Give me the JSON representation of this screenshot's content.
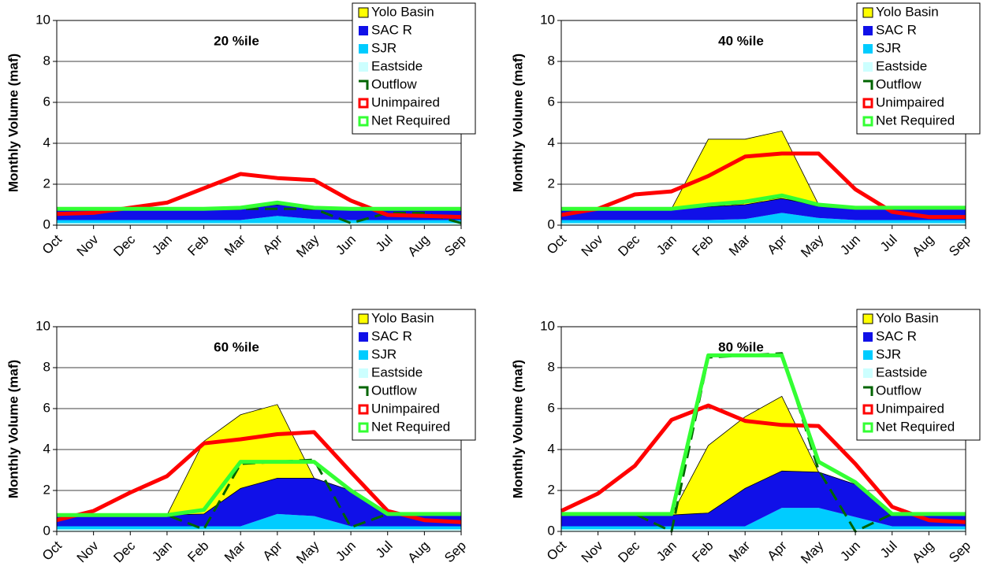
{
  "chart_data": [
    {
      "type": "area",
      "title": "20 %ile",
      "y_label": "Monthly Volume (maf)",
      "categories": [
        "Oct",
        "Nov",
        "Dec",
        "Jan",
        "Feb",
        "Mar",
        "Apr",
        "May",
        "Jun",
        "Jul",
        "Aug",
        "Sep"
      ],
      "ylim": [
        0,
        10
      ],
      "yticks": [
        0,
        2,
        4,
        6,
        8,
        10
      ],
      "grid": true,
      "legend": "top-right",
      "series": [
        {
          "name": "Yolo Basin",
          "kind": "area",
          "color": "#ffff00",
          "values": [
            0,
            0,
            0,
            0,
            0,
            0,
            0,
            0,
            0,
            0,
            0,
            0
          ]
        },
        {
          "name": "SAC R",
          "kind": "area",
          "color": "#1010e8",
          "values": [
            0.55,
            0.55,
            0.55,
            0.55,
            0.55,
            0.55,
            0.55,
            0.55,
            0.55,
            0.55,
            0.55,
            0.55
          ]
        },
        {
          "name": "SJR",
          "kind": "area",
          "color": "#00ccff",
          "values": [
            0.15,
            0.15,
            0.15,
            0.15,
            0.15,
            0.15,
            0.35,
            0.2,
            0.15,
            0.15,
            0.15,
            0.15
          ]
        },
        {
          "name": "Eastside",
          "kind": "area",
          "color": "#ccffff",
          "values": [
            0.1,
            0.1,
            0.1,
            0.1,
            0.1,
            0.1,
            0.1,
            0.1,
            0.1,
            0.1,
            0.1,
            0.1
          ]
        },
        {
          "name": "Outflow",
          "kind": "line",
          "dashed": true,
          "color": "#006400",
          "values": [
            0.8,
            0.8,
            0.8,
            0.8,
            0.8,
            0.8,
            0.8,
            0.8,
            0.1,
            0.6,
            0.6,
            0.1
          ]
        },
        {
          "name": "Unimpaired",
          "kind": "line",
          "color": "#ff0000",
          "values": [
            0.55,
            0.6,
            0.85,
            1.1,
            1.8,
            2.5,
            2.3,
            2.2,
            1.2,
            0.5,
            0.45,
            0.4
          ]
        },
        {
          "name": "Net Required",
          "kind": "line",
          "color": "#33ff33",
          "values": [
            0.8,
            0.8,
            0.8,
            0.8,
            0.8,
            0.85,
            1.1,
            0.85,
            0.8,
            0.8,
            0.8,
            0.8
          ]
        }
      ]
    },
    {
      "type": "area",
      "title": "40 %ile",
      "y_label": "Monthly Volume (maf)",
      "categories": [
        "Oct",
        "Nov",
        "Dec",
        "Jan",
        "Feb",
        "Mar",
        "Apr",
        "May",
        "Jun",
        "Jul",
        "Aug",
        "Sep"
      ],
      "ylim": [
        0,
        10
      ],
      "yticks": [
        0,
        2,
        4,
        6,
        8,
        10
      ],
      "grid": true,
      "legend": "top-right",
      "series": [
        {
          "name": "Yolo Basin",
          "kind": "area",
          "color": "#ffff00",
          "values": [
            0,
            0,
            0,
            0,
            3.3,
            3.2,
            3.3,
            0.05,
            0,
            0,
            0,
            0
          ]
        },
        {
          "name": "SAC R",
          "kind": "area",
          "color": "#1010e8",
          "values": [
            0.55,
            0.55,
            0.55,
            0.55,
            0.65,
            0.7,
            0.7,
            0.6,
            0.55,
            0.55,
            0.55,
            0.55
          ]
        },
        {
          "name": "SJR",
          "kind": "area",
          "color": "#00ccff",
          "values": [
            0.15,
            0.15,
            0.15,
            0.15,
            0.15,
            0.2,
            0.5,
            0.25,
            0.15,
            0.15,
            0.15,
            0.15
          ]
        },
        {
          "name": "Eastside",
          "kind": "area",
          "color": "#ccffff",
          "values": [
            0.1,
            0.1,
            0.1,
            0.1,
            0.1,
            0.1,
            0.1,
            0.1,
            0.1,
            0.1,
            0.1,
            0.1
          ]
        },
        {
          "name": "Outflow",
          "kind": "line",
          "dashed": true,
          "color": "#006400",
          "values": [
            0.8,
            0.8,
            0.8,
            0.8,
            0.95,
            1.1,
            1.4,
            0.95,
            0.85,
            0.85,
            0.85,
            0.85
          ]
        },
        {
          "name": "Unimpaired",
          "kind": "line",
          "color": "#ff0000",
          "values": [
            0.5,
            0.8,
            1.5,
            1.65,
            2.4,
            3.35,
            3.5,
            3.5,
            1.75,
            0.65,
            0.4,
            0.4
          ]
        },
        {
          "name": "Net Required",
          "kind": "line",
          "color": "#33ff33",
          "values": [
            0.8,
            0.8,
            0.8,
            0.8,
            1.0,
            1.15,
            1.45,
            1.0,
            0.85,
            0.85,
            0.85,
            0.85
          ]
        }
      ]
    },
    {
      "type": "area",
      "title": "60 %ile",
      "y_label": "Monthly Volume (maf)",
      "categories": [
        "Oct",
        "Nov",
        "Dec",
        "Jan",
        "Feb",
        "Mar",
        "Apr",
        "May",
        "Jun",
        "Jul",
        "Aug",
        "Sep"
      ],
      "ylim": [
        0,
        10
      ],
      "yticks": [
        0,
        2,
        4,
        6,
        8,
        10
      ],
      "grid": true,
      "legend": "top-right",
      "series": [
        {
          "name": "Yolo Basin",
          "kind": "area",
          "color": "#ffff00",
          "values": [
            0,
            0,
            0,
            0,
            3.55,
            3.6,
            3.6,
            0,
            0,
            0,
            0,
            0
          ]
        },
        {
          "name": "SAC R",
          "kind": "area",
          "color": "#1010e8",
          "values": [
            0.55,
            0.55,
            0.55,
            0.55,
            0.6,
            1.85,
            1.75,
            1.85,
            1.75,
            0.55,
            0.55,
            0.55
          ]
        },
        {
          "name": "SJR",
          "kind": "area",
          "color": "#00ccff",
          "values": [
            0.15,
            0.15,
            0.15,
            0.15,
            0.15,
            0.15,
            0.75,
            0.65,
            0.15,
            0.15,
            0.15,
            0.15
          ]
        },
        {
          "name": "Eastside",
          "kind": "area",
          "color": "#ccffff",
          "values": [
            0.1,
            0.1,
            0.1,
            0.1,
            0.1,
            0.1,
            0.1,
            0.1,
            0.1,
            0.1,
            0.1,
            0.1
          ]
        },
        {
          "name": "Outflow",
          "kind": "line",
          "dashed": true,
          "color": "#006400",
          "values": [
            0.8,
            0.8,
            0.8,
            0.8,
            0.1,
            3.3,
            3.4,
            3.5,
            0.2,
            0.85,
            0.85,
            0.85
          ]
        },
        {
          "name": "Unimpaired",
          "kind": "line",
          "color": "#ff0000",
          "values": [
            0.55,
            1.0,
            1.9,
            2.7,
            4.3,
            4.5,
            4.75,
            4.85,
            2.9,
            1.0,
            0.55,
            0.45
          ]
        },
        {
          "name": "Net Required",
          "kind": "line",
          "color": "#33ff33",
          "values": [
            0.8,
            0.8,
            0.8,
            0.8,
            1.05,
            3.4,
            3.4,
            3.4,
            2.0,
            0.85,
            0.85,
            0.85
          ]
        }
      ]
    },
    {
      "type": "area",
      "title": "80 %ile",
      "y_label": "Monthly Volume (maf)",
      "categories": [
        "Oct",
        "Nov",
        "Dec",
        "Jan",
        "Feb",
        "Mar",
        "Apr",
        "May",
        "Jun",
        "Jul",
        "Aug",
        "Sep"
      ],
      "ylim": [
        0,
        10
      ],
      "yticks": [
        0,
        2,
        4,
        6,
        8,
        10
      ],
      "grid": true,
      "legend": "top-right",
      "series": [
        {
          "name": "Yolo Basin",
          "kind": "area",
          "color": "#ffff00",
          "values": [
            0,
            0,
            0,
            0,
            3.3,
            3.5,
            3.65,
            0,
            0,
            0,
            0,
            0
          ]
        },
        {
          "name": "SAC R",
          "kind": "area",
          "color": "#1010e8",
          "values": [
            0.55,
            0.55,
            0.55,
            0.55,
            0.65,
            1.85,
            1.8,
            1.75,
            1.6,
            0.55,
            0.55,
            0.55
          ]
        },
        {
          "name": "SJR",
          "kind": "area",
          "color": "#00ccff",
          "values": [
            0.15,
            0.15,
            0.15,
            0.15,
            0.15,
            0.15,
            1.05,
            1.05,
            0.6,
            0.15,
            0.15,
            0.15
          ]
        },
        {
          "name": "Eastside",
          "kind": "area",
          "color": "#ccffff",
          "values": [
            0.1,
            0.1,
            0.1,
            0.1,
            0.1,
            0.1,
            0.1,
            0.1,
            0.1,
            0.1,
            0.1,
            0.1
          ]
        },
        {
          "name": "Outflow",
          "kind": "line",
          "dashed": true,
          "color": "#006400",
          "values": [
            0.85,
            0.85,
            0.85,
            0.0,
            8.5,
            8.6,
            8.7,
            3.0,
            0.0,
            0.85,
            0.85,
            0.85
          ]
        },
        {
          "name": "Unimpaired",
          "kind": "line",
          "color": "#ff0000",
          "values": [
            1.0,
            1.85,
            3.2,
            5.45,
            6.15,
            5.4,
            5.2,
            5.15,
            3.3,
            1.2,
            0.55,
            0.45
          ]
        },
        {
          "name": "Net Required",
          "kind": "line",
          "color": "#33ff33",
          "values": [
            0.85,
            0.85,
            0.85,
            0.85,
            8.6,
            8.6,
            8.6,
            3.4,
            2.4,
            0.85,
            0.85,
            0.85
          ]
        }
      ]
    }
  ]
}
